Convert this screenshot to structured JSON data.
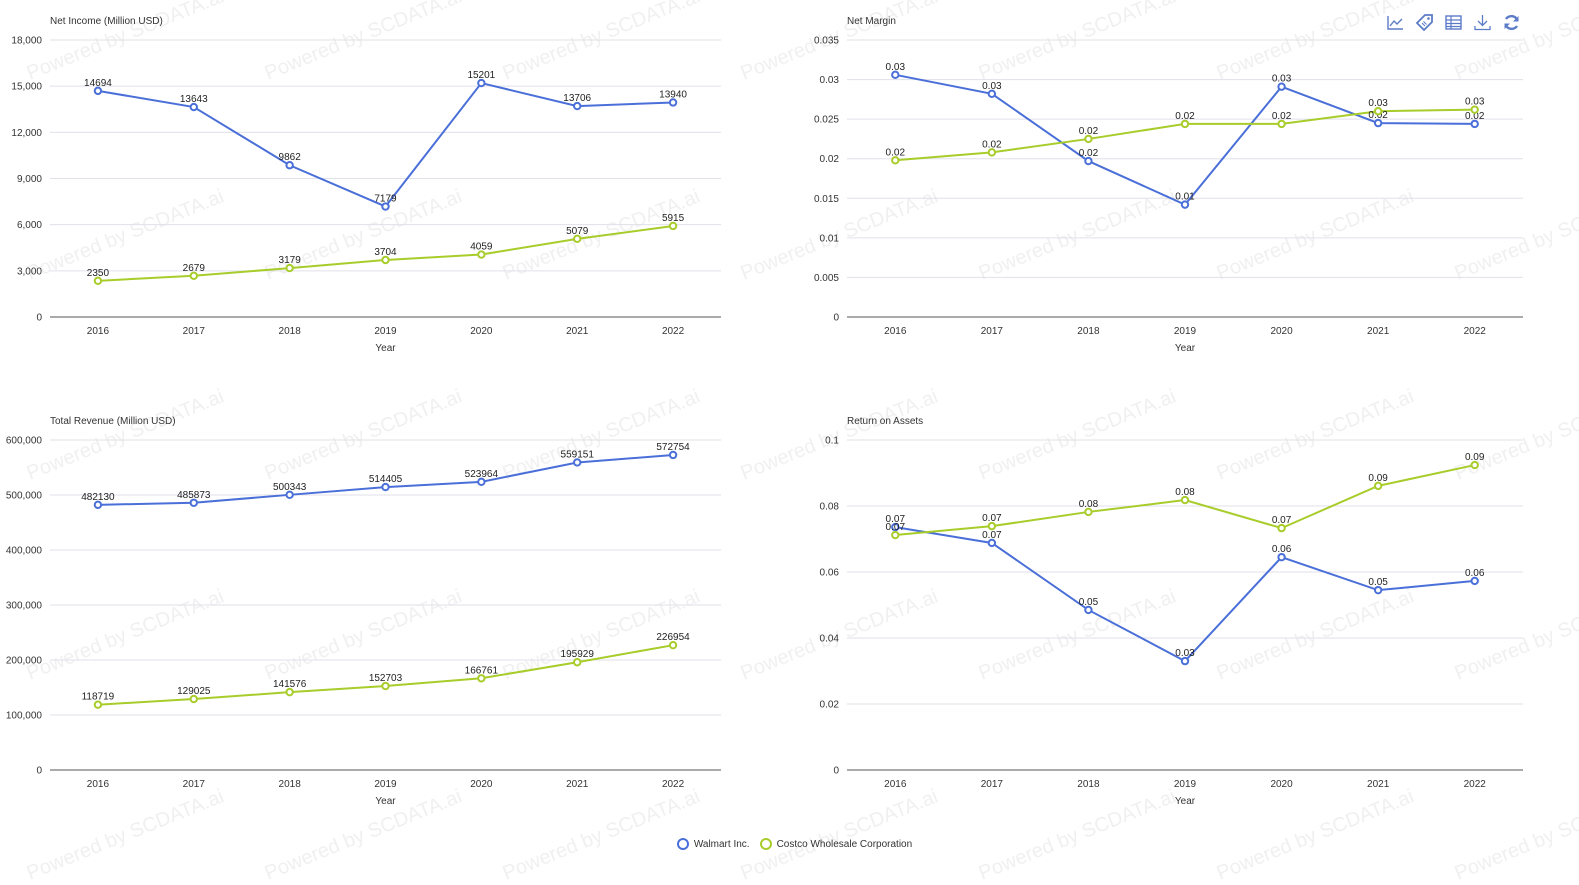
{
  "colors": {
    "walmart": "#4a6fd8",
    "costco": "#a8cc2a",
    "grid": "#e0e0ea",
    "axis": "#555555",
    "text": "#333333",
    "tool": "#5c7bc7",
    "watermark": "#f0f0f0"
  },
  "watermark": "Powered by SCDATA.ai",
  "toolbox": [
    {
      "name": "line-chart-icon"
    },
    {
      "name": "tag-icon"
    },
    {
      "name": "data-table-icon"
    },
    {
      "name": "download-icon"
    },
    {
      "name": "refresh-icon"
    }
  ],
  "legend": [
    {
      "label": "Walmart Inc.",
      "color": "#4a6fd8"
    },
    {
      "label": "Costco Wholesale Corporation",
      "color": "#a8cc2a"
    }
  ],
  "chart_data": [
    {
      "type": "line",
      "title": "Net Income (Million USD)",
      "xlabel": "Year",
      "ylabel": "",
      "categories": [
        "2016",
        "2017",
        "2018",
        "2019",
        "2020",
        "2021",
        "2022"
      ],
      "ylim": [
        0,
        18000
      ],
      "yticks": [
        0,
        3000,
        6000,
        9000,
        12000,
        15000,
        18000
      ],
      "ytick_labels": [
        "0",
        "3,000",
        "6,000",
        "9,000",
        "12,000",
        "15,000",
        "18,000"
      ],
      "grid": true,
      "series": [
        {
          "name": "Walmart Inc.",
          "values": [
            14694,
            13643,
            9862,
            7179,
            15201,
            13706,
            13940
          ],
          "labels": [
            "14694",
            "13643",
            "9862",
            "7179",
            "15201",
            "13706",
            "13940"
          ]
        },
        {
          "name": "Costco Wholesale Corporation",
          "values": [
            2350,
            2679,
            3179,
            3704,
            4059,
            5079,
            5915
          ],
          "labels": [
            "2350",
            "2679",
            "3179",
            "3704",
            "4059",
            "5079",
            "5915"
          ]
        }
      ]
    },
    {
      "type": "line",
      "title": "Net Margin",
      "xlabel": "Year",
      "ylabel": "",
      "categories": [
        "2016",
        "2017",
        "2018",
        "2019",
        "2020",
        "2021",
        "2022"
      ],
      "ylim": [
        0,
        0.035
      ],
      "yticks": [
        0,
        0.005,
        0.01,
        0.015,
        0.02,
        0.025,
        0.03,
        0.035
      ],
      "ytick_labels": [
        "0",
        "0.005",
        "0.01",
        "0.015",
        "0.02",
        "0.025",
        "0.03",
        "0.035"
      ],
      "grid": true,
      "series": [
        {
          "name": "Walmart Inc.",
          "values": [
            0.0306,
            0.0282,
            0.0197,
            0.0142,
            0.0291,
            0.0245,
            0.0244
          ],
          "labels": [
            "0.03",
            "0.03",
            "0.02",
            "0.01",
            "0.03",
            "0.02",
            "0.02"
          ]
        },
        {
          "name": "Costco Wholesale Corporation",
          "values": [
            0.0198,
            0.0208,
            0.0225,
            0.0244,
            0.0244,
            0.026,
            0.0262
          ],
          "labels": [
            "0.02",
            "0.02",
            "0.02",
            "0.02",
            "0.02",
            "0.03",
            "0.03"
          ]
        }
      ]
    },
    {
      "type": "line",
      "title": "Total Revenue (Million USD)",
      "xlabel": "Year",
      "ylabel": "",
      "categories": [
        "2016",
        "2017",
        "2018",
        "2019",
        "2020",
        "2021",
        "2022"
      ],
      "ylim": [
        0,
        600000
      ],
      "yticks": [
        0,
        100000,
        200000,
        300000,
        400000,
        500000,
        600000
      ],
      "ytick_labels": [
        "0",
        "100,000",
        "200,000",
        "300,000",
        "400,000",
        "500,000",
        "600,000"
      ],
      "grid": true,
      "series": [
        {
          "name": "Walmart Inc.",
          "values": [
            482130,
            485873,
            500343,
            514405,
            523964,
            559151,
            572754
          ],
          "labels": [
            "482130",
            "485873",
            "500343",
            "514405",
            "523964",
            "559151",
            "572754"
          ]
        },
        {
          "name": "Costco Wholesale Corporation",
          "values": [
            118719,
            129025,
            141576,
            152703,
            166761,
            195929,
            226954
          ],
          "labels": [
            "118719",
            "129025",
            "141576",
            "152703",
            "166761",
            "195929",
            "226954"
          ]
        }
      ]
    },
    {
      "type": "line",
      "title": "Return on Assets",
      "xlabel": "Year",
      "ylabel": "",
      "categories": [
        "2016",
        "2017",
        "2018",
        "2019",
        "2020",
        "2021",
        "2022"
      ],
      "ylim": [
        0,
        0.1
      ],
      "yticks": [
        0,
        0.02,
        0.04,
        0.06,
        0.08,
        0.1
      ],
      "ytick_labels": [
        "0",
        "0.02",
        "0.04",
        "0.06",
        "0.08",
        "0.1"
      ],
      "grid": true,
      "series": [
        {
          "name": "Walmart Inc.",
          "values": [
            0.0736,
            0.0688,
            0.0485,
            0.033,
            0.0645,
            0.0545,
            0.0573
          ],
          "labels": [
            "0.07",
            "0.07",
            "0.05",
            "0.03",
            "0.06",
            "0.05",
            "0.06"
          ]
        },
        {
          "name": "Costco Wholesale Corporation",
          "values": [
            0.0712,
            0.0739,
            0.0782,
            0.0818,
            0.0733,
            0.0861,
            0.0924
          ],
          "labels": [
            "0.07",
            "0.07",
            "0.08",
            "0.08",
            "0.07",
            "0.09",
            "0.09"
          ]
        }
      ]
    }
  ]
}
